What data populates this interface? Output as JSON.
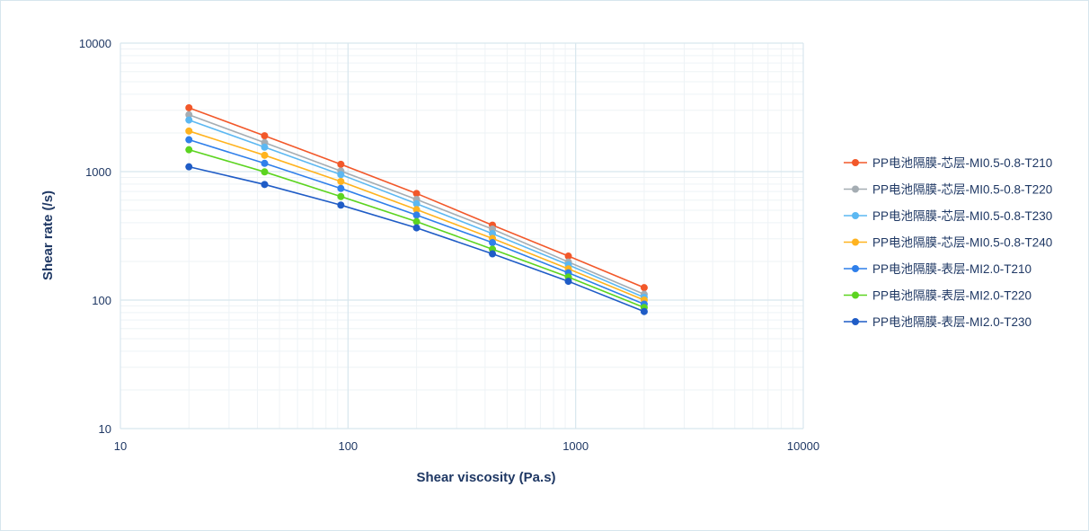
{
  "chart_data": {
    "type": "line",
    "title": "",
    "xlabel": "Shear viscosity (Pa.s)",
    "ylabel": "Shear rate (/s)",
    "x_scale": "log",
    "y_scale": "log",
    "xlim": [
      10,
      10000
    ],
    "ylim": [
      10,
      10000
    ],
    "x_ticks": [
      "10",
      "100",
      "1000",
      "10000"
    ],
    "y_ticks": [
      "10",
      "100",
      "1000",
      "10000"
    ],
    "grid": true,
    "legend_position": "right",
    "x": [
      20,
      43,
      93,
      200,
      431,
      929,
      2000
    ],
    "series": [
      {
        "name": "PP电池隔膜-芯层-MI0.5-0.8-T210",
        "color": "#f2582a",
        "values": [
          3140,
          1900,
          1140,
          676,
          383,
          220,
          125
        ]
      },
      {
        "name": "PP电池隔膜-芯层-MI0.5-0.8-T220",
        "color": "#a5adb3",
        "values": [
          2770,
          1680,
          1010,
          607,
          357,
          198,
          111
        ]
      },
      {
        "name": "PP电池隔膜-芯层-MI0.5-0.8-T230",
        "color": "#5cb8f2",
        "values": [
          2520,
          1550,
          948,
          562,
          329,
          188,
          105
        ]
      },
      {
        "name": "PP电池隔膜-芯层-MI0.5-0.8-T240",
        "color": "#ffb31f",
        "values": [
          2070,
          1340,
          838,
          506,
          302,
          175,
          100
        ]
      },
      {
        "name": "PP电池隔膜-表层-MI2.0-T210",
        "color": "#2f7fea",
        "values": [
          1770,
          1160,
          740,
          459,
          280,
          163,
          93
        ]
      },
      {
        "name": "PP电池隔膜-表层-MI2.0-T220",
        "color": "#5cd420",
        "values": [
          1480,
          995,
          640,
          408,
          249,
          151,
          87.5
        ]
      },
      {
        "name": "PP电池隔膜-表层-MI2.0-T230",
        "color": "#1f5cc6",
        "values": [
          1090,
          794,
          549,
          365,
          229,
          140,
          81.5
        ]
      }
    ]
  }
}
